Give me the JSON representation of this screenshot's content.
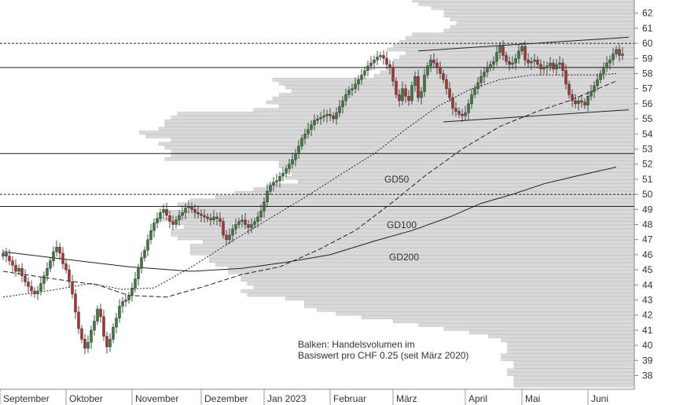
{
  "chart_data": {
    "type": "candlestick",
    "title": "",
    "xlabel": "",
    "ylabel": "",
    "ylim": [
      37,
      62.8
    ],
    "y_ticks": [
      38,
      39,
      40,
      41,
      42,
      43,
      44,
      45,
      46,
      47,
      48,
      49,
      50,
      51,
      52,
      53,
      54,
      55,
      56,
      57,
      58,
      59,
      60,
      61,
      62
    ],
    "months": [
      {
        "label": "September",
        "start": 0
      },
      {
        "label": "Oktober",
        "start": 21
      },
      {
        "label": "November",
        "start": 42
      },
      {
        "label": "Dezember",
        "start": 64
      },
      {
        "label": "Jan 2023",
        "start": 84
      },
      {
        "label": "Februar",
        "start": 105
      },
      {
        "label": "März",
        "start": 125
      },
      {
        "label": "April",
        "start": 148
      },
      {
        "label": "Mai",
        "start": 166
      },
      {
        "label": "Juni",
        "start": 187
      }
    ],
    "n_days": 197,
    "closes": [
      46.1,
      45.9,
      45.6,
      45.3,
      44.9,
      45.1,
      44.6,
      44.2,
      43.9,
      43.6,
      43.4,
      43.6,
      44.1,
      44.6,
      45.1,
      45.6,
      46.2,
      46.5,
      46.1,
      45.4,
      45.0,
      44.2,
      43.4,
      42.2,
      41.1,
      40.4,
      39.8,
      40.2,
      41.0,
      41.6,
      42.4,
      41.9,
      40.6,
      39.9,
      40.4,
      41.2,
      41.8,
      42.6,
      42.9,
      43.0,
      43.3,
      43.8,
      44.4,
      45.1,
      45.8,
      46.3,
      47.0,
      47.6,
      48.1,
      48.4,
      48.8,
      49.0,
      48.6,
      48.2,
      48.0,
      48.3,
      48.6,
      48.8,
      49.1,
      49.2,
      49.0,
      48.8,
      48.7,
      48.6,
      48.5,
      48.4,
      48.3,
      48.5,
      48.4,
      48.2,
      47.3,
      47.0,
      47.3,
      47.7,
      48.0,
      48.2,
      48.3,
      48.0,
      47.8,
      48.0,
      48.2,
      48.5,
      48.9,
      49.5,
      50.2,
      50.6,
      50.8,
      50.9,
      51.2,
      51.4,
      51.7,
      52.0,
      52.3,
      52.7,
      53.2,
      53.7,
      54.0,
      54.3,
      54.6,
      54.9,
      55.0,
      55.1,
      55.2,
      55.3,
      55.2,
      55.0,
      55.4,
      55.8,
      56.2,
      56.6,
      56.9,
      57.0,
      57.3,
      57.6,
      57.9,
      58.2,
      58.5,
      58.7,
      58.9,
      59.1,
      59.2,
      59.0,
      58.6,
      58.4,
      57.5,
      56.6,
      56.2,
      57.0,
      56.5,
      56.2,
      57.2,
      57.8,
      56.4,
      56.8,
      57.9,
      58.5,
      58.9,
      58.7,
      58.4,
      58.0,
      57.6,
      57.0,
      56.4,
      55.7,
      55.5,
      55.3,
      55.2,
      55.4,
      56.0,
      56.6,
      57.0,
      57.4,
      57.8,
      58.1,
      58.4,
      58.6,
      58.8,
      59.4,
      59.8,
      59.2,
      58.8,
      58.6,
      58.7,
      59.0,
      59.5,
      59.8,
      58.9,
      58.7,
      58.8,
      58.9,
      58.6,
      58.3,
      58.4,
      58.5,
      58.7,
      58.3,
      58.6,
      58.7,
      58.2,
      57.3,
      56.6,
      56.2,
      56.0,
      56.2,
      56.1,
      55.9,
      56.5,
      56.8,
      57.2,
      57.6,
      58.0,
      58.4,
      58.7,
      58.9,
      59.3,
      59.6,
      59.2,
      59.3
    ],
    "moving_averages": [
      {
        "name": "GD50",
        "points": [
          [
            0,
            43.2
          ],
          [
            14,
            43.6
          ],
          [
            28,
            44.1
          ],
          [
            38,
            43.7
          ],
          [
            48,
            43.8
          ],
          [
            60,
            45.2
          ],
          [
            72,
            46.8
          ],
          [
            84,
            48.3
          ],
          [
            96,
            49.8
          ],
          [
            108,
            51.4
          ],
          [
            118,
            52.7
          ],
          [
            128,
            54.3
          ],
          [
            138,
            55.8
          ],
          [
            148,
            56.9
          ],
          [
            158,
            57.6
          ],
          [
            168,
            57.9
          ],
          [
            178,
            57.9
          ],
          [
            190,
            57.9
          ],
          [
            195,
            58.0
          ]
        ],
        "dashed": true
      },
      {
        "name": "GD100",
        "points": [
          [
            0,
            44.9
          ],
          [
            16,
            44.4
          ],
          [
            30,
            44.0
          ],
          [
            40,
            43.3
          ],
          [
            52,
            43.2
          ],
          [
            64,
            43.9
          ],
          [
            76,
            44.7
          ],
          [
            88,
            45.2
          ],
          [
            100,
            46.3
          ],
          [
            112,
            47.6
          ],
          [
            124,
            49.5
          ],
          [
            134,
            51.2
          ],
          [
            146,
            53.0
          ],
          [
            158,
            54.5
          ],
          [
            170,
            55.5
          ],
          [
            180,
            56.2
          ],
          [
            195,
            57.5
          ]
        ],
        "dashed": true
      },
      {
        "name": "GD200",
        "points": [
          [
            0,
            46.2
          ],
          [
            20,
            45.7
          ],
          [
            40,
            45.2
          ],
          [
            60,
            44.9
          ],
          [
            76,
            45.1
          ],
          [
            90,
            45.5
          ],
          [
            104,
            46.0
          ],
          [
            118,
            46.9
          ],
          [
            130,
            47.6
          ],
          [
            142,
            48.5
          ],
          [
            152,
            49.4
          ],
          [
            162,
            50.0
          ],
          [
            172,
            50.7
          ],
          [
            182,
            51.2
          ],
          [
            195,
            51.8
          ]
        ],
        "dashed": false
      }
    ],
    "horizontal_lines": [
      {
        "y": 60.0,
        "style": "dotted"
      },
      {
        "y": 58.4,
        "style": "solid"
      },
      {
        "y": 52.7,
        "style": "solid"
      },
      {
        "y": 50.0,
        "style": "dotted"
      },
      {
        "y": 49.2,
        "style": "solid"
      }
    ],
    "trend_lines": [
      {
        "from": [
          132,
          59.5
        ],
        "to": [
          199,
          60.4
        ]
      },
      {
        "from": [
          140,
          54.8
        ],
        "to": [
          199,
          55.6
        ]
      }
    ],
    "volume_profile": {
      "price_from": 37.2,
      "step": 0.25,
      "lengths": [
        0.19,
        0.19,
        0.19,
        0.2,
        0.2,
        0.19,
        0.19,
        0.21,
        0.21,
        0.2,
        0.2,
        0.2,
        0.21,
        0.23,
        0.26,
        0.3,
        0.34,
        0.38,
        0.43,
        0.47,
        0.5,
        0.52,
        0.52,
        0.55,
        0.61,
        0.62,
        0.6,
        0.61,
        0.62,
        0.62,
        0.64,
        0.64,
        0.66,
        0.67,
        0.67,
        0.7,
        0.7,
        0.7,
        0.68,
        0.72,
        0.73,
        0.73,
        0.71,
        0.72,
        0.75,
        0.73,
        0.74,
        0.7,
        0.72,
        0.7,
        0.66,
        0.63,
        0.6,
        0.58,
        0.53,
        0.55,
        0.54,
        0.55,
        0.56,
        0.56,
        0.74,
        0.73,
        0.73,
        0.74,
        0.75,
        0.73,
        0.77,
        0.78,
        0.75,
        0.74,
        0.74,
        0.73,
        0.72,
        0.6,
        0.56,
        0.58,
        0.57,
        0.56,
        0.54,
        0.55,
        0.56,
        0.57,
        0.41,
        0.4,
        0.39,
        0.38,
        0.38,
        0.37,
        0.36,
        0.39,
        0.38,
        0.37,
        0.36,
        0.35,
        0.3,
        0.29,
        0.28,
        0.29,
        0.3,
        0.3,
        0.32,
        0.34,
        0.35,
        0.36,
        0.37,
        0.37,
        0.37,
        0.38,
        0.39,
        0.38,
        0.28,
        0.3,
        0.31,
        0.32,
        0.4,
        0.41,
        0.4,
        0.41,
        0.42,
        0.42,
        0.4,
        0.42,
        0.41,
        0.4,
        0.42,
        0.4,
        0.4,
        0.4,
        0.4,
        0.38,
        0.36,
        0.34,
        0.32,
        0.3,
        0.27,
        0.25,
        0.24,
        0.22,
        0.2,
        0.18,
        0.16,
        0.14,
        0.12,
        0.1,
        0.08,
        0.05,
        0.03
      ]
    },
    "labels": [
      "GD50",
      "GD100",
      "GD200"
    ],
    "annotation": [
      "Balken: Handelsvolumen im",
      "Basiswert pro CHF 0.25 (seit März 2020)"
    ],
    "colors": {
      "up": "#3a7a3a",
      "down": "#b03030",
      "wick": "#222222",
      "volume": "#d9d9d9",
      "volume_edge": "#b8b8b8",
      "line": "#222222"
    }
  }
}
